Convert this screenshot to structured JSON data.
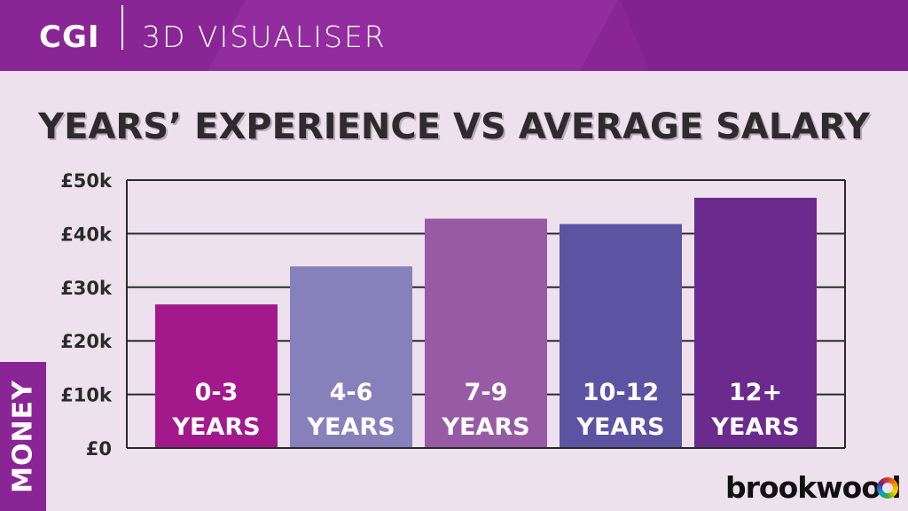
{
  "header": {
    "logo": "CGI",
    "app_name": "3D VISUALISER"
  },
  "section_tab": "MONEY",
  "brand": "brookwood",
  "chart_data": {
    "type": "bar",
    "title": "YEARS’ EXPERIENCE VS AVERAGE SALARY",
    "xlabel": "",
    "ylabel": "",
    "ylim": [
      0,
      50000
    ],
    "yticks": [
      {
        "value": 0,
        "label": "£0"
      },
      {
        "value": 10000,
        "label": "£10k"
      },
      {
        "value": 20000,
        "label": "£20k"
      },
      {
        "value": 30000,
        "label": "£30k"
      },
      {
        "value": 40000,
        "label": "£40k"
      },
      {
        "value": 50000,
        "label": "£50k"
      }
    ],
    "categories": [
      {
        "line1": "0-3",
        "line2": "YEARS"
      },
      {
        "line1": "4-6",
        "line2": "YEARS"
      },
      {
        "line1": "7-9",
        "line2": "YEARS"
      },
      {
        "line1": "10-12",
        "line2": "YEARS"
      },
      {
        "line1": "12+",
        "line2": "YEARS"
      }
    ],
    "values": [
      26800,
      33900,
      42800,
      41800,
      46700
    ],
    "colors": [
      "#a3198c",
      "#8781bb",
      "#975aa4",
      "#5c53a2",
      "#6a2a8e"
    ],
    "grid": true
  }
}
